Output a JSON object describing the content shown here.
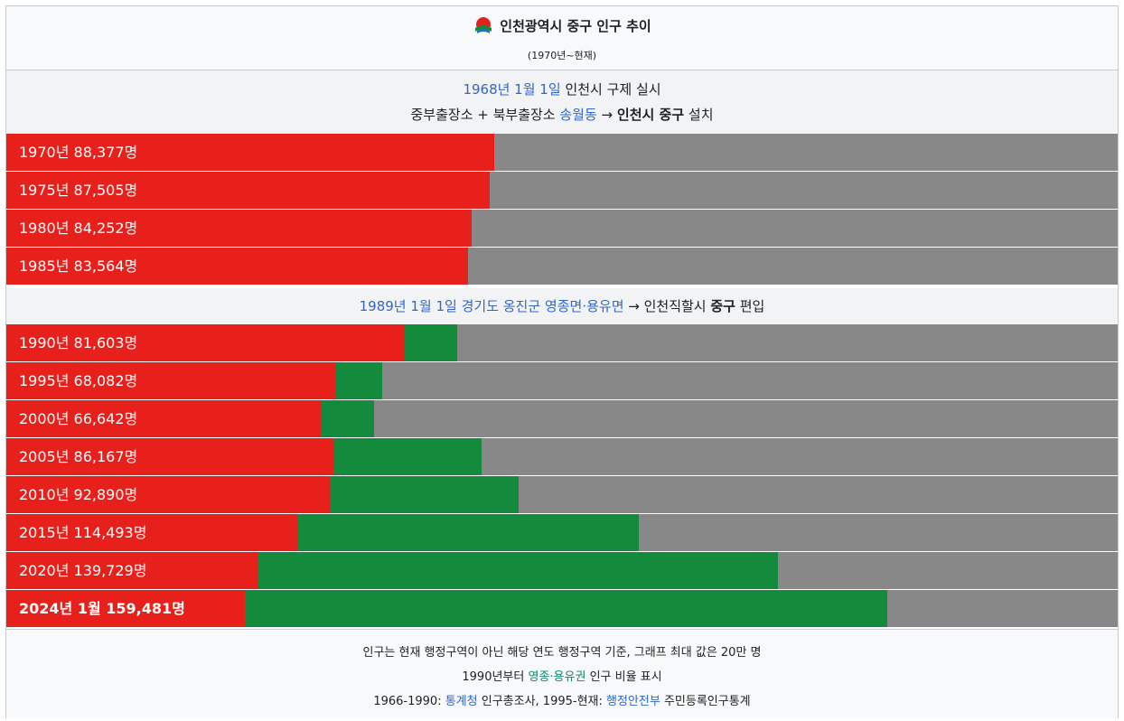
{
  "header": {
    "title": "인천광역시 중구 인구 추이",
    "subtitle": "(1970년~현재)",
    "emblem_icon": "incheon-emblem-icon"
  },
  "note1": {
    "line1_date": "1968년 1월 1일",
    "line1_rest": " 인천시 구제 실시",
    "line2_a": "중부출장소 + 북부출장소 ",
    "line2_link": "송월동",
    "line2_arrow": " → ",
    "line2_bold": "인천시 중구",
    "line2_end": " 설치"
  },
  "note2": {
    "link": "1989년 1월 1일 경기도 옹진군 영종면·용유면",
    "arrow_text": " → 인천직할시 ",
    "bold": "중구",
    "end": " 편입"
  },
  "footer": {
    "line1": "인구는 현재 행정구역이 아닌 해당 연도 행정구역 기준, 그래프 최대 값은 20만 명",
    "line2_a": "1990년부터 ",
    "line2_green": "영종·용유권",
    "line2_b": " 인구 비율 표시",
    "line3_a": "1966-1990: ",
    "line3_link1": "통계청",
    "line3_b": " 인구총조사, 1995-현재: ",
    "line3_link2": "행정안전부",
    "line3_c": " 주민등록인구통계"
  },
  "colors": {
    "original_area": "#e8201c",
    "yeongjong_yongyu": "#148a3c",
    "remainder": "#888888",
    "link": "#3366cc"
  },
  "chart_data": {
    "type": "bar",
    "orientation": "horizontal",
    "stacked": true,
    "title": "인천광역시 중구 인구 추이",
    "xlim": [
      0,
      200000
    ],
    "series_colors": [
      "#e8201c",
      "#148a3c"
    ],
    "rows": [
      {
        "label": "1970년 88,377명",
        "total": 88377,
        "green": 0
      },
      {
        "label": "1975년 87,505명",
        "total": 87505,
        "green": 0
      },
      {
        "label": "1980년 84,252명",
        "total": 84252,
        "green": 0
      },
      {
        "label": "1985년 83,564명",
        "total": 83564,
        "green": 0
      },
      {
        "label": "1990년 81,603명",
        "total": 81603,
        "green": 9500
      },
      {
        "label": "1995년 68,082명",
        "total": 68082,
        "green": 8300
      },
      {
        "label": "2000년 66,642명",
        "total": 66642,
        "green": 9500
      },
      {
        "label": "2005년 86,167명",
        "total": 86167,
        "green": 26900
      },
      {
        "label": "2010년 92,890명",
        "total": 92890,
        "green": 34100
      },
      {
        "label": "2015년 114,493명",
        "total": 114493,
        "green": 61800
      },
      {
        "label": "2020년 139,729명",
        "total": 139729,
        "green": 94100
      },
      {
        "label": "2024년 1월 159,481명",
        "total": 159481,
        "green": 116300,
        "bold": true
      }
    ]
  }
}
